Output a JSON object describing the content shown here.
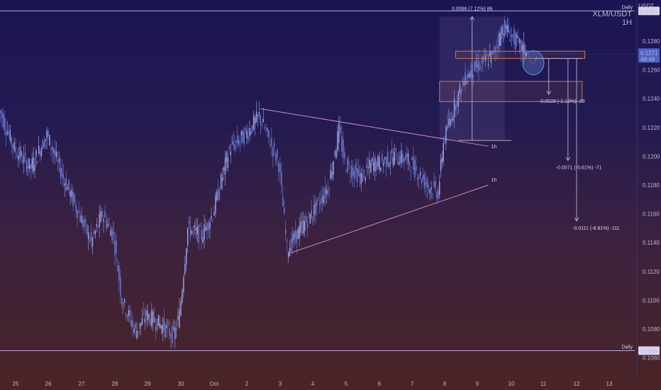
{
  "header": {
    "symbol": "XLM/USDT",
    "interval": "1H",
    "currency": "USDT"
  },
  "colors": {
    "candle": "#6f7fd6",
    "candle_light": "#9ea9ee",
    "level_line": "#b7a7d8",
    "trendline": "#d18ab3",
    "box": "#d0784f",
    "measure": "#c9c5dc",
    "circle": "#6a8ee0",
    "current_price_bg": "#4c63c9",
    "level_price_bg": "#d9d4ec"
  },
  "chart_data": {
    "type": "candlestick",
    "price_axis": {
      "ticks": [
        "0.1280",
        "0.1260",
        "0.1240",
        "0.1220",
        "0.1200",
        "0.1180",
        "0.1160",
        "0.1140",
        "0.1120",
        "0.1100",
        "0.1080",
        "0.1060"
      ],
      "ylim": [
        0.1058,
        0.131
      ]
    },
    "time_axis": {
      "ticks": [
        "25",
        "26",
        "27",
        "28",
        "29",
        "30",
        "Oct",
        "2",
        "3",
        "4",
        "5",
        "6",
        "7",
        "8",
        "9",
        "10",
        "11",
        "12",
        "13"
      ]
    },
    "key_points": [
      {
        "time": "24 12:00",
        "price": 0.1235
      },
      {
        "time": "25",
        "price": 0.1205
      },
      {
        "time": "25 12:00",
        "price": 0.1192
      },
      {
        "time": "26",
        "price": 0.1215
      },
      {
        "time": "26 12:00",
        "price": 0.1185
      },
      {
        "time": "27",
        "price": 0.1158
      },
      {
        "time": "27 08:00",
        "price": 0.114
      },
      {
        "time": "27 16:00",
        "price": 0.116
      },
      {
        "time": "28",
        "price": 0.1145
      },
      {
        "time": "28 06:00",
        "price": 0.11
      },
      {
        "time": "28 16:00",
        "price": 0.1078
      },
      {
        "time": "29",
        "price": 0.109
      },
      {
        "time": "29 12:00",
        "price": 0.1082
      },
      {
        "time": "29 20:00",
        "price": 0.1075
      },
      {
        "time": "30",
        "price": 0.109
      },
      {
        "time": "30 06:00",
        "price": 0.115
      },
      {
        "time": "30 16:00",
        "price": 0.1145
      },
      {
        "time": "Oct",
        "price": 0.116
      },
      {
        "time": "1 12:00",
        "price": 0.1205
      },
      {
        "time": "2",
        "price": 0.1215
      },
      {
        "time": "2 10:00",
        "price": 0.1228
      },
      {
        "time": "2 20:00",
        "price": 0.1205
      },
      {
        "time": "3",
        "price": 0.1195
      },
      {
        "time": "3 06:00",
        "price": 0.1135
      },
      {
        "time": "3 16:00",
        "price": 0.115
      },
      {
        "time": "4",
        "price": 0.116
      },
      {
        "time": "4 12:00",
        "price": 0.1178
      },
      {
        "time": "4 20:00",
        "price": 0.1218
      },
      {
        "time": "5",
        "price": 0.1195
      },
      {
        "time": "5 12:00",
        "price": 0.1185
      },
      {
        "time": "5 20:00",
        "price": 0.1195
      },
      {
        "time": "6",
        "price": 0.1195
      },
      {
        "time": "6 12:00",
        "price": 0.12
      },
      {
        "time": "6 20:00",
        "price": 0.1198
      },
      {
        "time": "7",
        "price": 0.1195
      },
      {
        "time": "7 12:00",
        "price": 0.118
      },
      {
        "time": "7 20:00",
        "price": 0.1175
      },
      {
        "time": "8",
        "price": 0.121
      },
      {
        "time": "8 08:00",
        "price": 0.1235
      },
      {
        "time": "8 16:00",
        "price": 0.1255
      },
      {
        "time": "9",
        "price": 0.1262
      },
      {
        "time": "9 12:00",
        "price": 0.127
      },
      {
        "time": "9 20:00",
        "price": 0.129
      },
      {
        "time": "10",
        "price": 0.1285
      },
      {
        "time": "10 08:00",
        "price": 0.1275
      },
      {
        "time": "10 12:00",
        "price": 0.1273
      }
    ],
    "last_price": {
      "value": "0.1271",
      "countdown": "48:49"
    },
    "horizontal_levels": [
      {
        "price": 0.1301,
        "price_label": "0.1301",
        "label": "Daily"
      },
      {
        "price": 0.1065,
        "price_label": "0.1065",
        "label": "Daily"
      }
    ],
    "trendlines": [
      {
        "from": {
          "time": "2 10:00",
          "price": 0.1233
        },
        "to": {
          "time": "9 08:00",
          "price": 0.1207
        }
      },
      {
        "from": {
          "time": "3 08:00",
          "price": 0.1133
        },
        "to": {
          "time": "9 08:00",
          "price": 0.118
        }
      }
    ],
    "trendline_labels": [
      "1h",
      "1h"
    ],
    "boxes": [
      {
        "price_top": 0.1273,
        "price_bottom": 0.1268
      },
      {
        "price_top": 0.1252,
        "price_bottom": 0.1238
      }
    ],
    "measurements": [
      {
        "label": "0.0086 (7.12%) 86"
      },
      {
        "label": "-0.0028 (-2.19%) -28"
      },
      {
        "label": "-0.0071 (-5.61%) -71"
      },
      {
        "label": "-0.0111 (-8.81%) -111"
      }
    ],
    "grid": false
  }
}
